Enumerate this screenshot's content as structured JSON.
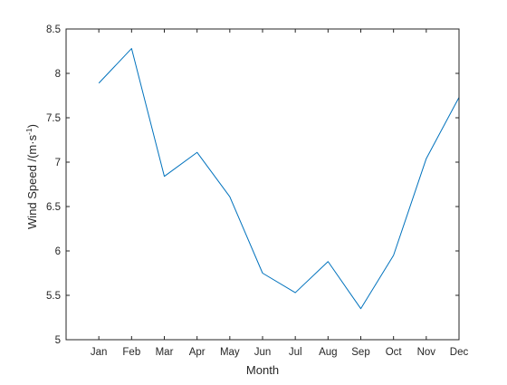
{
  "chart_data": {
    "type": "line",
    "title": "",
    "xlabel": "Month",
    "ylabel_main": "Wind Speed /(m·s",
    "ylabel_sup": "-1",
    "ylabel_close": ")",
    "categories": [
      "Jan",
      "Feb",
      "Mar",
      "Apr",
      "May",
      "Jun",
      "Jul",
      "Aug",
      "Sep",
      "Oct",
      "Nov",
      "Dec"
    ],
    "x_tick_labels": [
      "Jan",
      "Feb",
      "Mar",
      "Apr",
      "May",
      "Jun",
      "Jul",
      "Aug",
      "Sep",
      "Oct",
      "Nov",
      "Dec"
    ],
    "xlim": [
      0,
      12
    ],
    "ylim": [
      5,
      8.5
    ],
    "y_ticks": [
      5,
      5.5,
      6,
      6.5,
      7,
      7.5,
      8,
      8.5
    ],
    "y_tick_labels": [
      "5",
      "5.5",
      "6",
      "6.5",
      "7",
      "7.5",
      "8",
      "8.5"
    ],
    "grid": false,
    "legend": "none",
    "series": [
      {
        "values": [
          7.89,
          8.28,
          6.84,
          7.11,
          6.61,
          5.75,
          5.53,
          5.88,
          5.35,
          5.95,
          7.04,
          7.73
        ],
        "color": "#0072BD"
      }
    ],
    "colors": {
      "axis": "#262626",
      "background": "#ffffff"
    }
  }
}
